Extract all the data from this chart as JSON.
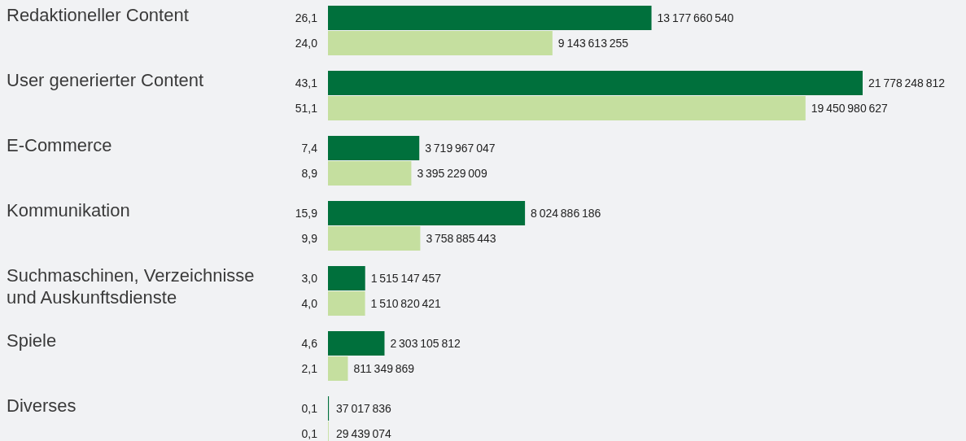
{
  "chart_data": {
    "type": "bar",
    "orientation": "horizontal",
    "categories": [
      "Redaktioneller Content",
      "User generierter Content",
      "E-Commerce",
      "Kommunikation",
      "Suchmaschinen, Verzeichnisse und Auskunftsdienste",
      "Spiele",
      "Diverses"
    ],
    "series": [
      {
        "color": "#00703c",
        "values": [
          13177660540,
          21778248812,
          3719967047,
          8024886186,
          1515147457,
          2303105812,
          37017836
        ]
      },
      {
        "color": "#c5df9f",
        "values": [
          9143613255,
          19450980627,
          3395229009,
          3758885443,
          1510820421,
          811349869,
          29439074
        ]
      }
    ],
    "data_labels": true,
    "annotations": [
      "26,1",
      "24,0",
      "43,1",
      "51,1",
      "7,4",
      "8,9",
      "15,9",
      "9,9",
      "3,0",
      "4,0",
      "4,6",
      "2,1",
      "0,1",
      "0,1"
    ]
  }
}
